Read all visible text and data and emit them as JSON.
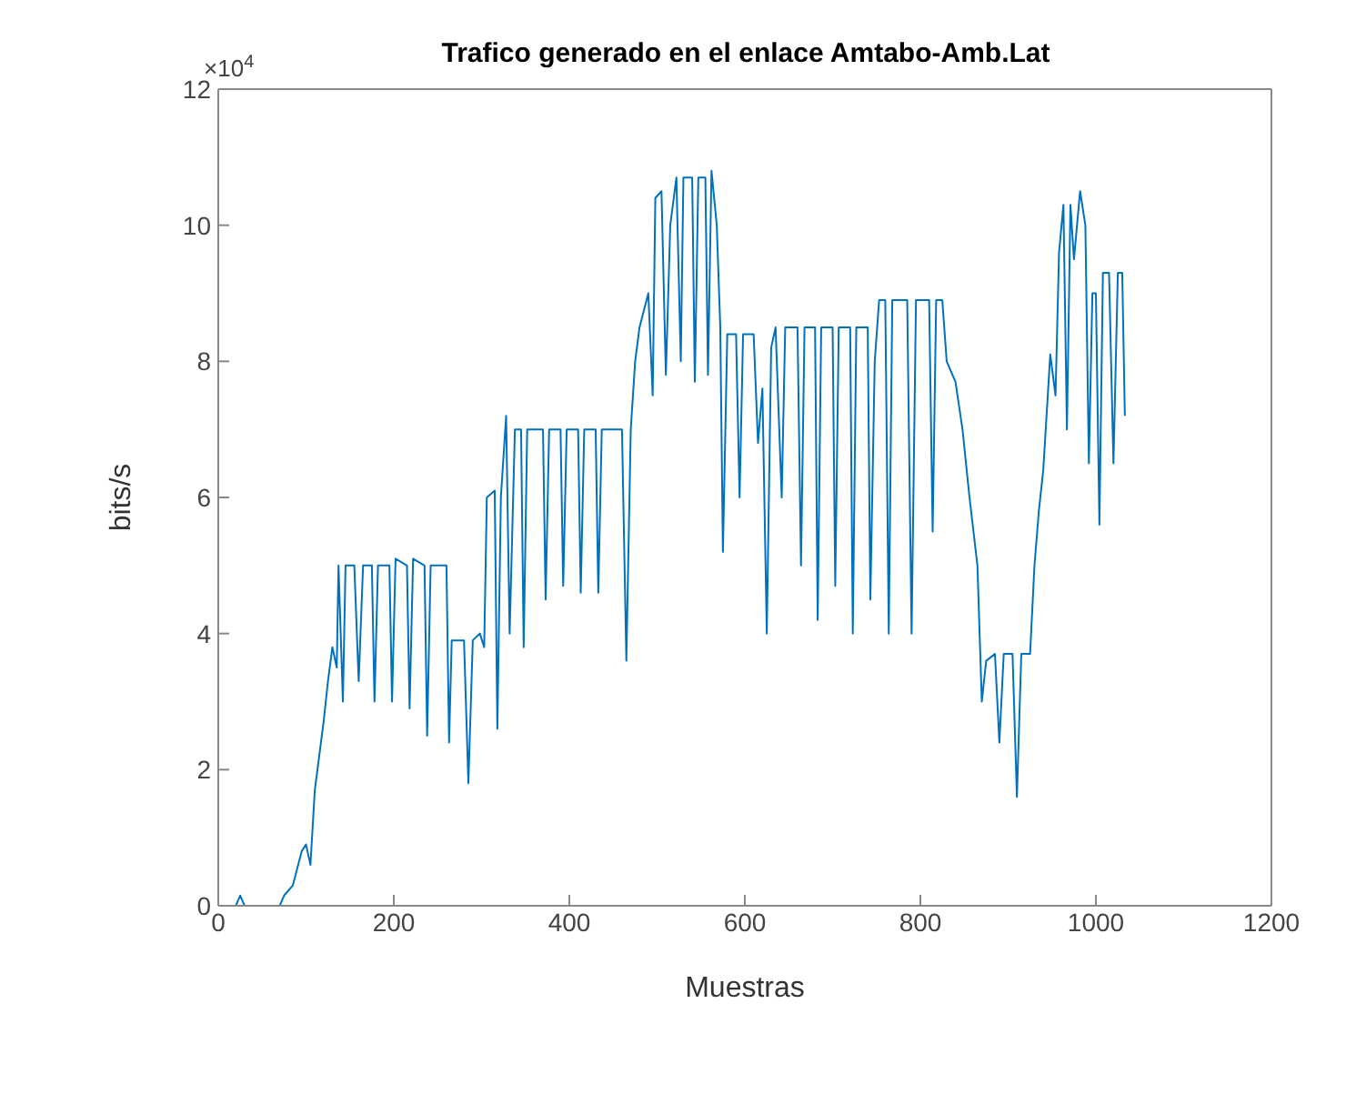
{
  "chart_data": {
    "type": "line",
    "title": "Trafico generado en el enlace Amtabo-Amb.Lat",
    "xlabel": "Muestras",
    "ylabel": "bits/s",
    "annotations": [
      "×10$^{4}$"
    ],
    "xlim": [
      0,
      1200
    ],
    "xticks": [
      0,
      200,
      400,
      600,
      800,
      1000,
      1200
    ],
    "ylim": [
      0,
      12
    ],
    "yticks": [
      0,
      2,
      4,
      6,
      8,
      10,
      12
    ],
    "grid": false,
    "legend": false,
    "marker": "none",
    "line_style": "solid",
    "series": [
      {
        "color": "#0072bd",
        "x": [
          0,
          20,
          25,
          30,
          70,
          75,
          85,
          95,
          100,
          105,
          110,
          115,
          120,
          125,
          130,
          135,
          137,
          142,
          145,
          155,
          160,
          165,
          175,
          178,
          182,
          195,
          198,
          202,
          215,
          218,
          222,
          235,
          238,
          242,
          260,
          263,
          266,
          280,
          285,
          290,
          298,
          303,
          306,
          315,
          318,
          322,
          328,
          332,
          338,
          345,
          348,
          352,
          370,
          373,
          377,
          390,
          393,
          397,
          410,
          413,
          417,
          430,
          433,
          437,
          460,
          465,
          470,
          475,
          480,
          490,
          495,
          498,
          505,
          510,
          515,
          522,
          527,
          530,
          540,
          543,
          547,
          555,
          558,
          562,
          568,
          572,
          575,
          580,
          590,
          594,
          598,
          610,
          615,
          620,
          625,
          630,
          635,
          642,
          646,
          660,
          664,
          668,
          680,
          683,
          687,
          700,
          703,
          707,
          720,
          723,
          727,
          740,
          743,
          748,
          753,
          760,
          764,
          768,
          785,
          790,
          795,
          810,
          814,
          818,
          825,
          830,
          840,
          848,
          856,
          865,
          870,
          875,
          885,
          890,
          895,
          905,
          910,
          915,
          925,
          930,
          935,
          940,
          948,
          954,
          958,
          963,
          967,
          971,
          975,
          982,
          988,
          992,
          996,
          1000,
          1004,
          1008,
          1015,
          1020,
          1025,
          1030,
          1033
        ],
        "values": [
          0,
          0,
          0.15,
          0,
          0,
          0.15,
          0.3,
          0.8,
          0.9,
          0.6,
          1.7,
          2.2,
          2.7,
          3.3,
          3.8,
          3.5,
          5.0,
          3.0,
          5.0,
          5.0,
          3.3,
          5.0,
          5.0,
          3.0,
          5.0,
          5.0,
          3.0,
          5.1,
          5.0,
          2.9,
          5.1,
          5.0,
          2.5,
          5.0,
          5.0,
          2.4,
          3.9,
          3.9,
          1.8,
          3.9,
          4.0,
          3.8,
          6.0,
          6.1,
          2.6,
          6.0,
          7.2,
          4.0,
          7.0,
          7.0,
          3.8,
          7.0,
          7.0,
          4.5,
          7.0,
          7.0,
          4.7,
          7.0,
          7.0,
          4.6,
          7.0,
          7.0,
          4.6,
          7.0,
          7.0,
          3.6,
          7.0,
          8.0,
          8.5,
          9.0,
          7.5,
          10.4,
          10.5,
          7.8,
          10.0,
          10.7,
          8.0,
          10.7,
          10.7,
          7.7,
          10.7,
          10.7,
          7.8,
          10.8,
          10.0,
          8.5,
          5.2,
          8.4,
          8.4,
          6.0,
          8.4,
          8.4,
          6.8,
          7.6,
          4.0,
          8.2,
          8.5,
          6.0,
          8.5,
          8.5,
          5.0,
          8.5,
          8.5,
          4.2,
          8.5,
          8.5,
          4.7,
          8.5,
          8.5,
          4.0,
          8.5,
          8.5,
          4.5,
          8.0,
          8.9,
          8.9,
          4.0,
          8.9,
          8.9,
          4.0,
          8.9,
          8.9,
          5.5,
          8.9,
          8.9,
          8.0,
          7.7,
          7.0,
          6.0,
          5.0,
          3.0,
          3.6,
          3.7,
          2.4,
          3.7,
          3.7,
          1.6,
          3.7,
          3.7,
          5.0,
          5.8,
          6.4,
          8.1,
          7.5,
          9.6,
          10.3,
          7.0,
          10.3,
          9.5,
          10.5,
          10.0,
          6.5,
          9.0,
          9.0,
          5.6,
          9.3,
          9.3,
          6.5,
          9.3,
          9.3,
          7.2
        ]
      }
    ]
  }
}
